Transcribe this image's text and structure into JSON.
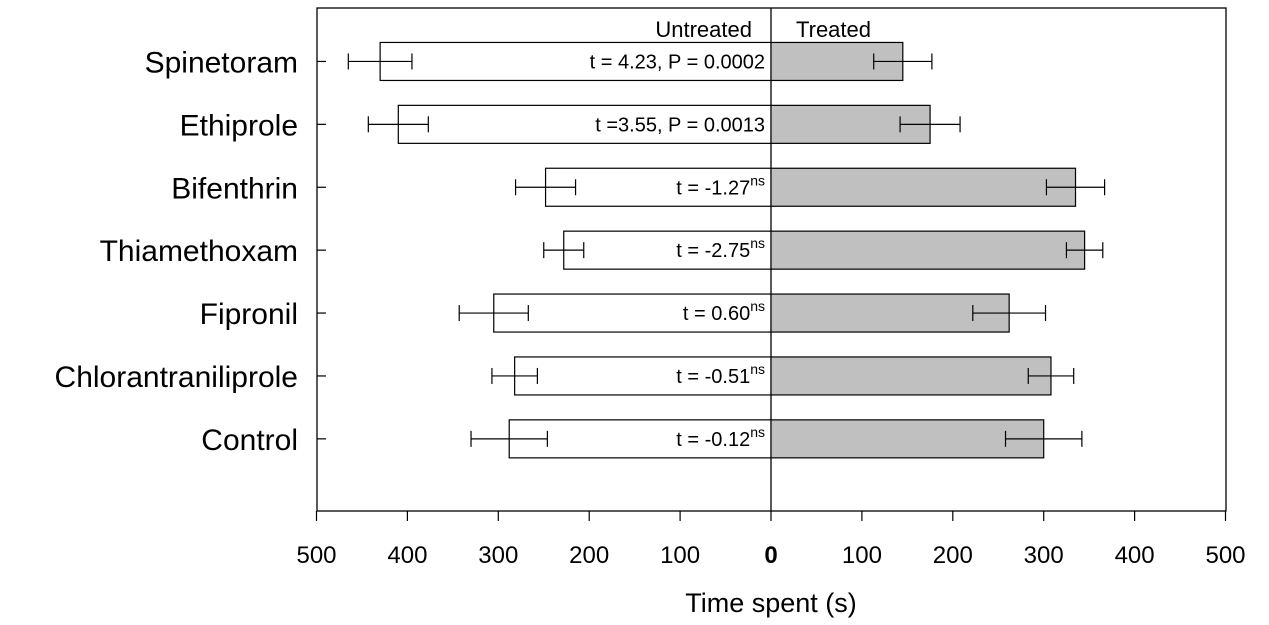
{
  "chart_data": {
    "type": "bar",
    "orientation": "horizontal",
    "xlabel": "Time spent (s)",
    "xlim": [
      -500,
      500
    ],
    "x_ticks": [
      -500,
      -400,
      -300,
      -200,
      -100,
      0,
      100,
      200,
      300,
      400,
      500
    ],
    "x_tick_labels": [
      "500",
      "400",
      "300",
      "200",
      "100",
      "0",
      "100",
      "200",
      "300",
      "400",
      "500"
    ],
    "categories": [
      "Spinetoram",
      "Ethiprole",
      "Bifenthrin",
      "Thiamethoxam",
      "Fipronil",
      "Chlorantraniliprole",
      "Control"
    ],
    "side_labels": {
      "left": "Untreated",
      "right": "Treated"
    },
    "series": [
      {
        "name": "Untreated",
        "color": "#ffffff",
        "values": [
          430,
          410,
          248,
          228,
          305,
          282,
          288
        ],
        "errors": [
          35,
          33,
          33,
          22,
          38,
          25,
          42
        ]
      },
      {
        "name": "Treated",
        "color": "#c0c0c0",
        "values": [
          145,
          175,
          335,
          345,
          262,
          308,
          300
        ],
        "errors": [
          32,
          33,
          32,
          20,
          40,
          25,
          42
        ]
      }
    ],
    "annotations": [
      {
        "text": "t = 4.23, P = 0.0002",
        "sup": ""
      },
      {
        "text": "t =3.55, P = 0.0013",
        "sup": ""
      },
      {
        "text": "t = -1.27",
        "sup": "ns"
      },
      {
        "text": "t = -2.75",
        "sup": "ns"
      },
      {
        "text": "t = 0.60",
        "sup": "ns"
      },
      {
        "text": "t = -0.51",
        "sup": "ns"
      },
      {
        "text": "t = -0.12",
        "sup": "ns"
      }
    ],
    "grid": false,
    "legend": "none"
  }
}
